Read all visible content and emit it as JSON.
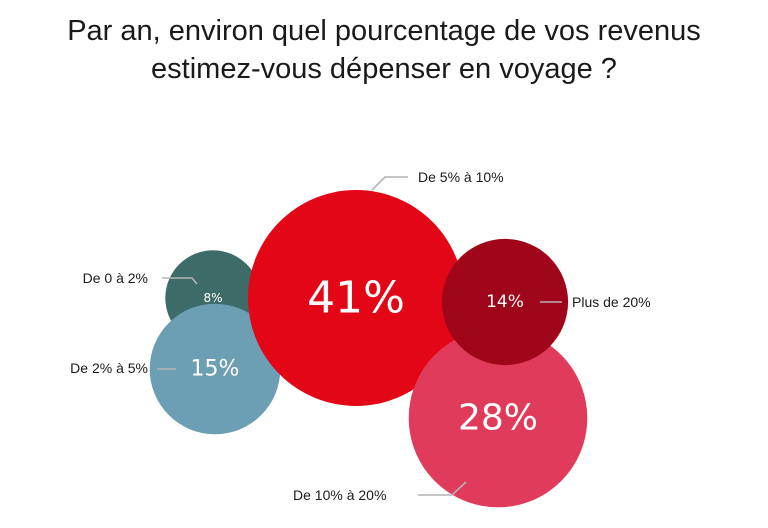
{
  "title": {
    "line1": "Par an, environ quel pourcentage de vos revenus",
    "line2": "estimez-vous dépenser en voyage ?"
  },
  "chart_data": {
    "type": "bubble",
    "unit": "%",
    "categories": [
      "De 0 à 2%",
      "De 2% à 5%",
      "De 5% à 10%",
      "De 10% à 20%",
      "Plus de 20%"
    ],
    "values": [
      8,
      15,
      41,
      28,
      14
    ],
    "value_labels": [
      "8%",
      "15%",
      "41%",
      "28%",
      "14%"
    ],
    "colors": [
      "#3d6b67",
      "#6c9fb4",
      "#e30617",
      "#e03b5b",
      "#a0061a"
    ]
  }
}
